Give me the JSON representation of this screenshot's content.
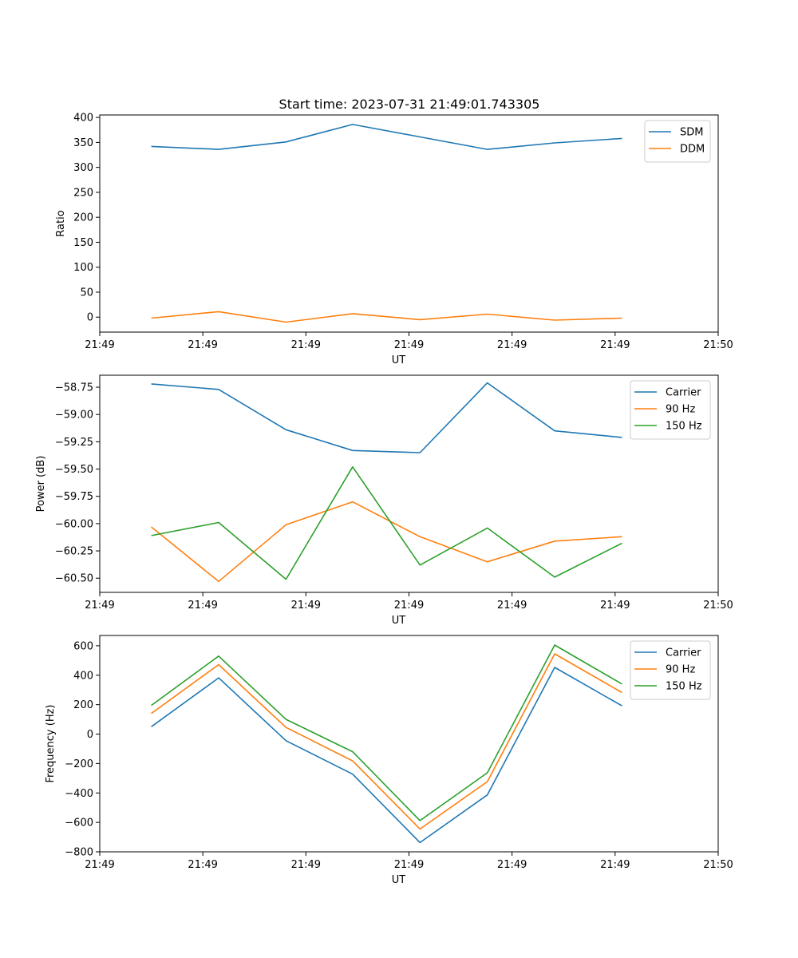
{
  "figure_title": "Start time: 2023-07-31 21:49:01.743305",
  "chart_data": [
    {
      "type": "line",
      "name": "ratio",
      "title": "Start time: 2023-07-31 21:49:01.743305",
      "xlabel": "UT",
      "ylabel": "Ratio",
      "xlim": [
        0,
        9
      ],
      "ylim": [
        -30,
        405
      ],
      "xticks": [
        0,
        1,
        2,
        3,
        4,
        5,
        6,
        7,
        8,
        9
      ],
      "xtick_positions": [
        0,
        1.5,
        3,
        4.5,
        6,
        7.5,
        9
      ],
      "xtick_labels": [
        "21:49",
        "21:49",
        "21:49",
        "21:49",
        "21:49",
        "21:49",
        "21:50"
      ],
      "yticks": [
        0,
        50,
        100,
        150,
        200,
        250,
        300,
        350,
        400
      ],
      "ytick_labels": [
        "0",
        "50",
        "100",
        "150",
        "200",
        "250",
        "300",
        "350",
        "400"
      ],
      "legend_position": "top-right",
      "x": [
        0.75,
        1.73,
        2.71,
        3.68,
        4.66,
        5.64,
        6.62,
        7.6
      ],
      "series": [
        {
          "name": "SDM",
          "color": "#1f77b4",
          "values": [
            342,
            336,
            351,
            386,
            361,
            336,
            349,
            358
          ]
        },
        {
          "name": "DDM",
          "color": "#ff7f0e",
          "values": [
            -2,
            11,
            -10,
            7,
            -5,
            6,
            -6,
            -2
          ]
        }
      ]
    },
    {
      "type": "line",
      "name": "power",
      "title": "",
      "xlabel": "UT",
      "ylabel": "Power (dB)",
      "xlim": [
        0,
        9
      ],
      "ylim": [
        -60.63,
        -58.64
      ],
      "xtick_positions": [
        0,
        1.5,
        3,
        4.5,
        6,
        7.5,
        9
      ],
      "xtick_labels": [
        "21:49",
        "21:49",
        "21:49",
        "21:49",
        "21:49",
        "21:49",
        "21:50"
      ],
      "yticks": [
        -60.5,
        -60.25,
        -60.0,
        -59.75,
        -59.5,
        -59.25,
        -59.0,
        -58.75
      ],
      "ytick_labels": [
        "−60.50",
        "−60.25",
        "−60.00",
        "−59.75",
        "−59.50",
        "−59.25",
        "−59.00",
        "−58.75"
      ],
      "legend_position": "top-right",
      "x": [
        0.75,
        1.73,
        2.71,
        3.68,
        4.66,
        5.64,
        6.62,
        7.6
      ],
      "series": [
        {
          "name": "Carrier",
          "color": "#1f77b4",
          "values": [
            -58.72,
            -58.77,
            -59.14,
            -59.33,
            -59.35,
            -58.71,
            -59.15,
            -59.21
          ]
        },
        {
          "name": "90 Hz",
          "color": "#ff7f0e",
          "values": [
            -60.03,
            -60.53,
            -60.01,
            -59.8,
            -60.12,
            -60.35,
            -60.16,
            -60.12
          ]
        },
        {
          "name": "150 Hz",
          "color": "#2ca02c",
          "values": [
            -60.11,
            -59.99,
            -60.51,
            -59.48,
            -60.38,
            -60.04,
            -60.49,
            -60.18
          ]
        }
      ]
    },
    {
      "type": "line",
      "name": "frequency",
      "title": "",
      "xlabel": "UT",
      "ylabel": "Frequency (Hz)",
      "xlim": [
        0,
        9
      ],
      "ylim": [
        -800,
        670
      ],
      "xtick_positions": [
        0,
        1.5,
        3,
        4.5,
        6,
        7.5,
        9
      ],
      "xtick_labels": [
        "21:49",
        "21:49",
        "21:49",
        "21:49",
        "21:49",
        "21:49",
        "21:50"
      ],
      "yticks": [
        -800,
        -600,
        -400,
        -200,
        0,
        200,
        400,
        600
      ],
      "ytick_labels": [
        "−800",
        "−600",
        "−400",
        "−200",
        "0",
        "200",
        "400",
        "600"
      ],
      "legend_position": "top-right",
      "x": [
        0.75,
        1.73,
        2.71,
        3.68,
        4.66,
        5.64,
        6.62,
        7.6
      ],
      "series": [
        {
          "name": "Carrier",
          "color": "#1f77b4",
          "values": [
            50,
            382,
            -45,
            -272,
            -737,
            -413,
            453,
            192
          ]
        },
        {
          "name": "90 Hz",
          "color": "#ff7f0e",
          "values": [
            140,
            472,
            45,
            -182,
            -645,
            -323,
            545,
            282
          ]
        },
        {
          "name": "150 Hz",
          "color": "#2ca02c",
          "values": [
            195,
            530,
            100,
            -120,
            -588,
            -263,
            605,
            340
          ]
        }
      ]
    }
  ]
}
